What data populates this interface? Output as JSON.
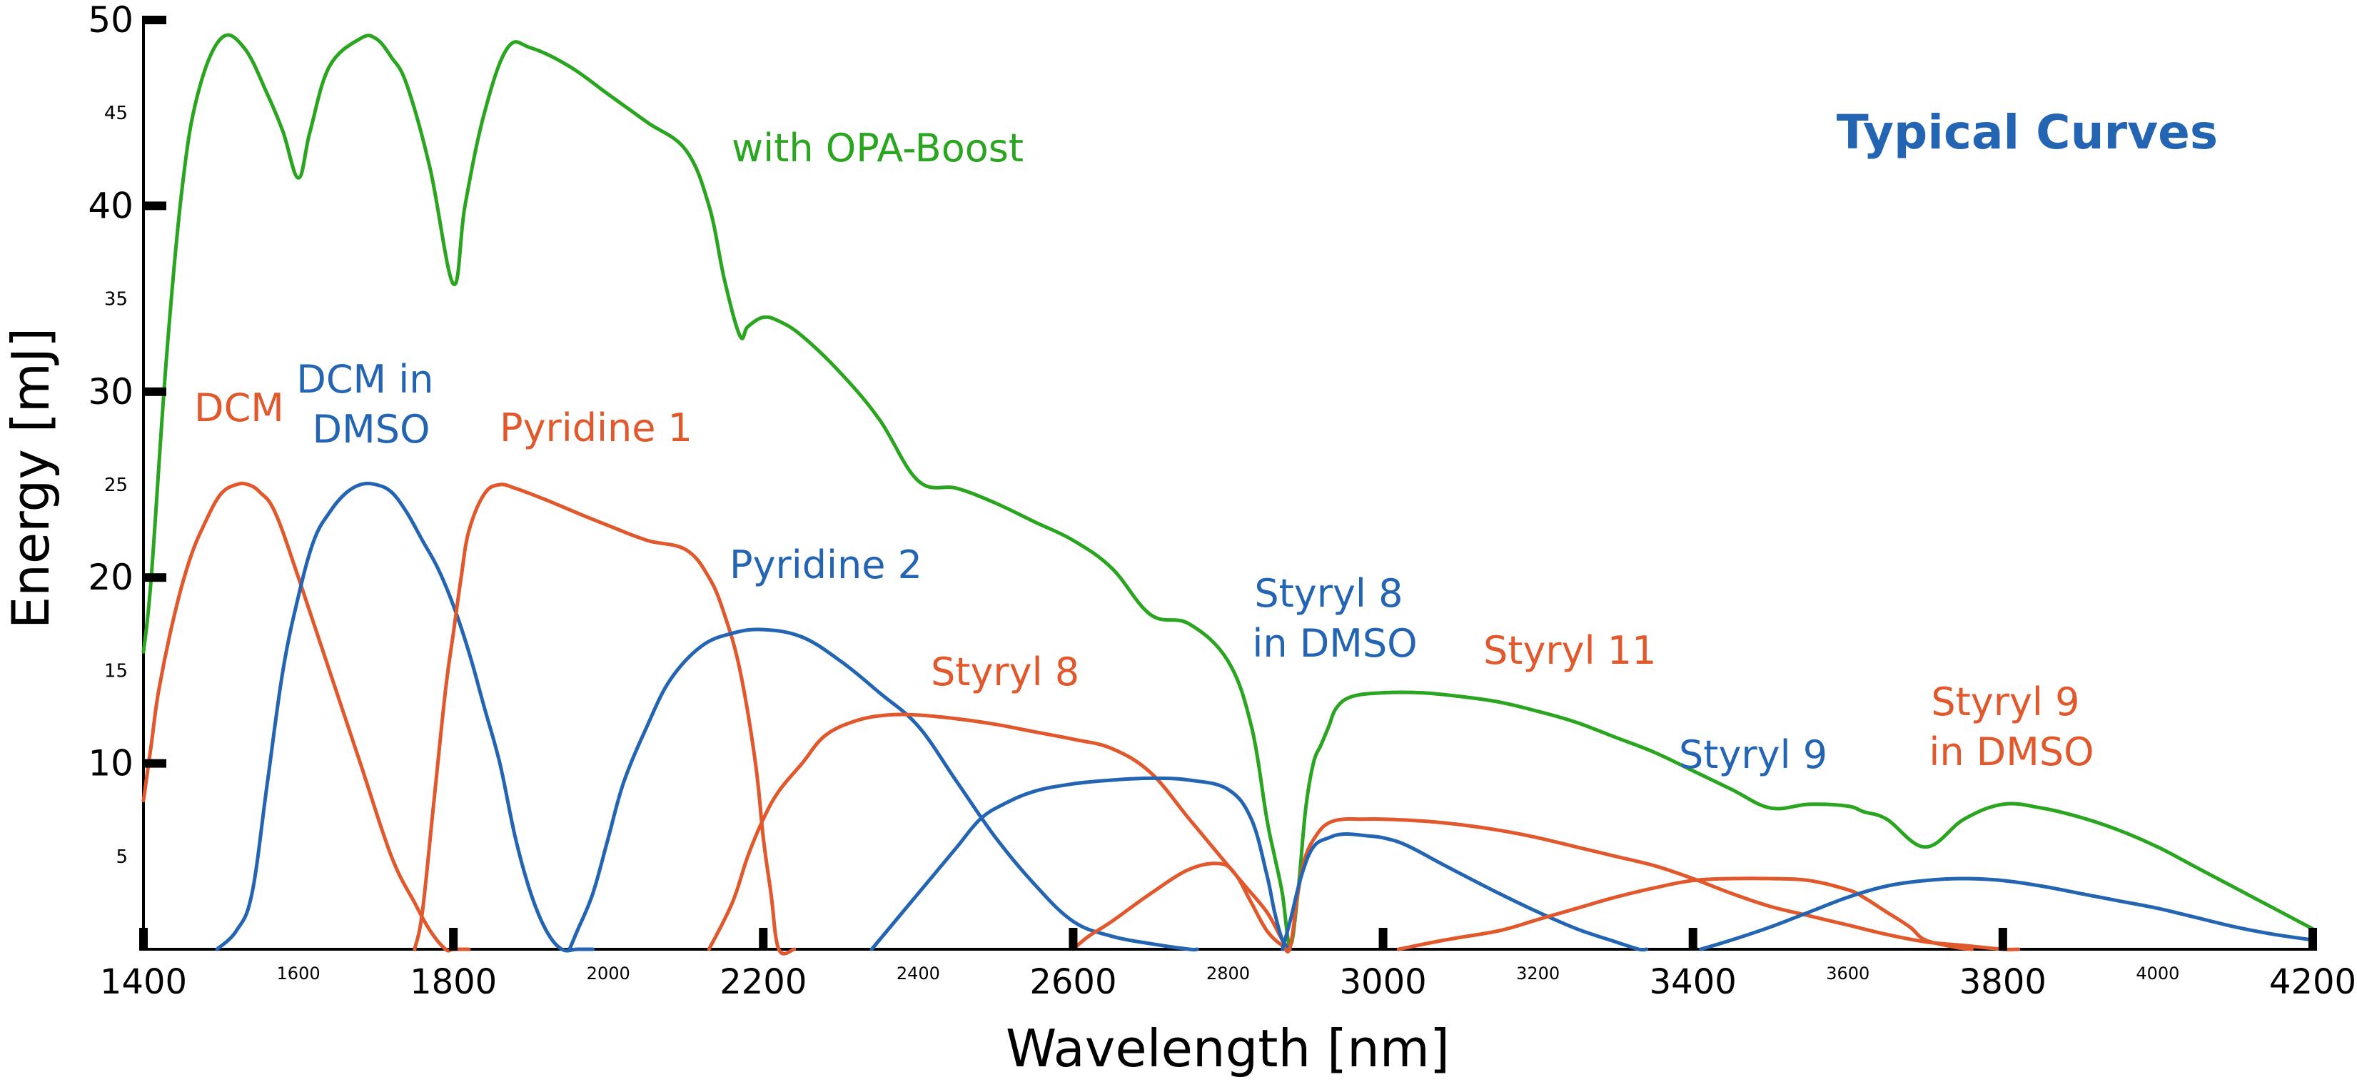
{
  "chart_data": {
    "type": "line",
    "title": "Typical Curves",
    "xlabel": "Wavelength [nm]",
    "ylabel": "Energy [mJ]",
    "xlim": [
      1400,
      4200
    ],
    "ylim": [
      0,
      50
    ],
    "x_ticks_major": [
      "1400",
      "1800",
      "2200",
      "2600",
      "3000",
      "3400",
      "3800",
      "4200"
    ],
    "x_ticks_minor": [
      "1600",
      "2000",
      "2400",
      "2800",
      "3200",
      "3600",
      "4000"
    ],
    "y_ticks_major": [
      "10",
      "20",
      "30",
      "40",
      "50"
    ],
    "y_ticks_minor": [
      "5",
      "15",
      "25",
      "35",
      "45"
    ],
    "grid": false,
    "colors": {
      "green": "#2aa520",
      "blue": "#2364b3",
      "orange": "#e0582b",
      "title": "#2364b3"
    },
    "series": [
      {
        "name": "with OPA-Boost",
        "color": "#2aa520",
        "x": [
          1400,
          1410,
          1430,
          1450,
          1470,
          1500,
          1530,
          1560,
          1580,
          1600,
          1615,
          1640,
          1680,
          1700,
          1720,
          1740,
          1770,
          1800,
          1815,
          1840,
          1870,
          1900,
          1950,
          2000,
          2050,
          2100,
          2130,
          2150,
          2170,
          2180,
          2200,
          2220,
          2250,
          2300,
          2350,
          2400,
          2450,
          2500,
          2550,
          2600,
          2650,
          2700,
          2750,
          2800,
          2830,
          2850,
          2860,
          2870,
          2880,
          2890,
          2900,
          2910,
          2920,
          2930,
          2940,
          2960,
          3000,
          3050,
          3100,
          3150,
          3200,
          3250,
          3300,
          3350,
          3400,
          3450,
          3500,
          3550,
          3600,
          3620,
          3650,
          3700,
          3750,
          3800,
          3850,
          3900,
          3950,
          4000,
          4050,
          4100,
          4150,
          4200
        ],
        "y": [
          16,
          20,
          32,
          41,
          46,
          49,
          48.5,
          46,
          44,
          41.5,
          44,
          47.5,
          49,
          49,
          48,
          46.5,
          42,
          35.8,
          40,
          45,
          48.5,
          48.5,
          47.5,
          46,
          44.5,
          43,
          40,
          36,
          33,
          33.5,
          34,
          33.8,
          33,
          31,
          28.5,
          25.2,
          24.8,
          24,
          23,
          22,
          20.5,
          18,
          17.5,
          15.5,
          12,
          7,
          5,
          3,
          0.2,
          3,
          7.5,
          10,
          11,
          12,
          13,
          13.6,
          13.8,
          13.8,
          13.6,
          13.3,
          12.8,
          12.2,
          11.4,
          10.6,
          9.6,
          8.6,
          7.6,
          7.8,
          7.7,
          7.4,
          7,
          5.5,
          7,
          7.8,
          7.6,
          7.1,
          6.4,
          5.5,
          4.4,
          3.3,
          2.2,
          1.1
        ]
      },
      {
        "name": "DCM",
        "color": "#e0582b",
        "x": [
          1400,
          1410,
          1420,
          1440,
          1460,
          1480,
          1500,
          1520,
          1535,
          1550,
          1570,
          1600,
          1640,
          1680,
          1720,
          1750,
          1770,
          1790,
          1800,
          1820
        ],
        "y": [
          8,
          11,
          14,
          18,
          21,
          23,
          24.5,
          25,
          25,
          24.6,
          23.5,
          20,
          15,
          10,
          5,
          2.5,
          1,
          0,
          0,
          0
        ]
      },
      {
        "name": "DCM in DMSO",
        "color": "#2364b3",
        "x": [
          1495,
          1520,
          1540,
          1560,
          1580,
          1600,
          1620,
          1640,
          1660,
          1680,
          1700,
          1720,
          1740,
          1760,
          1780,
          1800,
          1820,
          1840,
          1860,
          1880,
          1900,
          1920,
          1940,
          1960,
          1980
        ],
        "y": [
          0,
          1,
          3,
          9,
          15,
          19,
          22,
          23.5,
          24.5,
          25,
          25,
          24.6,
          23.5,
          22,
          20.5,
          18.5,
          16,
          13,
          10,
          6,
          3,
          1,
          0,
          0,
          0
        ]
      },
      {
        "name": "Pyridine 1",
        "color": "#e0582b",
        "x": [
          1750,
          1760,
          1775,
          1790,
          1800,
          1810,
          1820,
          1840,
          1860,
          1880,
          1900,
          1930,
          1970,
          2000,
          2050,
          2100,
          2130,
          2150,
          2170,
          2190,
          2200,
          2210,
          2220,
          2240
        ],
        "y": [
          0,
          2,
          8,
          14,
          17,
          20,
          22.5,
          24.5,
          25,
          24.8,
          24.5,
          24,
          23.3,
          22.8,
          22,
          21.5,
          20,
          18,
          15,
          10,
          6,
          3,
          0,
          0
        ]
      },
      {
        "name": "Pyridine 2",
        "color": "#2364b3",
        "x": [
          1950,
          1960,
          1980,
          2000,
          2020,
          2050,
          2080,
          2120,
          2160,
          2200,
          2250,
          2300,
          2350,
          2400,
          2450,
          2500,
          2550,
          2600,
          2650,
          2700,
          2750,
          2760
        ],
        "y": [
          0,
          1,
          3,
          6,
          9,
          12,
          14.5,
          16.3,
          17,
          17.2,
          16.8,
          15.5,
          13.8,
          12,
          9,
          6,
          3.5,
          1.5,
          0.7,
          0.3,
          0,
          0
        ]
      },
      {
        "name": "Styryl 8",
        "color": "#e0582b",
        "x": [
          2130,
          2160,
          2180,
          2200,
          2220,
          2250,
          2280,
          2320,
          2360,
          2400,
          2450,
          2500,
          2550,
          2600,
          2650,
          2700,
          2750,
          2790,
          2820,
          2850,
          2870,
          2880
        ],
        "y": [
          0,
          2.5,
          5,
          7,
          8.5,
          10,
          11.5,
          12.3,
          12.6,
          12.6,
          12.4,
          12.1,
          11.7,
          11.3,
          10.8,
          9.5,
          7,
          5,
          3.5,
          2,
          0.5,
          0
        ]
      },
      {
        "name": "Styryl 8 in DMSO",
        "color": "#2364b3",
        "x": [
          2340,
          2380,
          2420,
          2450,
          2480,
          2510,
          2550,
          2600,
          2650,
          2700,
          2750,
          2800,
          2830,
          2850,
          2860,
          2870,
          2880
        ],
        "y": [
          0,
          2,
          4,
          5.5,
          7,
          7.8,
          8.5,
          8.9,
          9.1,
          9.2,
          9.1,
          8.6,
          7,
          4,
          2,
          0.5,
          0
        ]
      },
      {
        "name": "Styryl 11",
        "color": "#e0582b",
        "x": [
          2600,
          2620,
          2650,
          2700,
          2750,
          2790,
          2810,
          2830,
          2850,
          2870,
          2880,
          2890,
          2900,
          2915,
          2930,
          2950,
          2970,
          3000,
          3050,
          3100,
          3150,
          3200,
          3250,
          3300,
          3350,
          3400,
          3450,
          3500,
          3550,
          3600,
          3650,
          3700,
          3750,
          3800,
          3820
        ],
        "y": [
          0,
          0.7,
          1.5,
          3,
          4.3,
          4.6,
          4,
          2.5,
          1,
          0.2,
          0.1,
          3,
          5,
          6.2,
          6.8,
          7,
          7,
          7,
          6.9,
          6.7,
          6.4,
          6,
          5.5,
          5,
          4.5,
          3.8,
          3,
          2.3,
          1.8,
          1.3,
          0.8,
          0.4,
          0.2,
          0,
          0
        ]
      },
      {
        "name": "Styryl 9",
        "color": "#2364b3",
        "x": [
          2870,
          2880,
          2895,
          2910,
          2930,
          2950,
          2980,
          3000,
          3030,
          3080,
          3150,
          3200,
          3250,
          3300,
          3330,
          3340
        ],
        "y": [
          0,
          1.5,
          4,
          5.5,
          6,
          6.2,
          6.1,
          6,
          5.6,
          4.5,
          3,
          2,
          1.1,
          0.4,
          0,
          0
        ]
      },
      {
        "name": "Styryl 9 in DMSO",
        "color": "#e0582b",
        "x": [
          3020,
          3080,
          3150,
          3200,
          3250,
          3300,
          3350,
          3400,
          3450,
          3500,
          3550,
          3600,
          3620,
          3650,
          3680,
          3700,
          3740,
          3760
        ],
        "y": [
          0,
          0.5,
          1,
          1.6,
          2.2,
          2.8,
          3.3,
          3.7,
          3.8,
          3.8,
          3.7,
          3.2,
          2.8,
          2,
          1.2,
          0.5,
          0.1,
          0
        ]
      },
      {
        "name": "",
        "color": "#2364b3",
        "x": [
          3410,
          3450,
          3500,
          3550,
          3600,
          3650,
          3700,
          3750,
          3800,
          3850,
          3900,
          3950,
          4000,
          4050,
          4100,
          4150,
          4200
        ],
        "y": [
          0,
          0.5,
          1.2,
          2,
          2.8,
          3.4,
          3.7,
          3.8,
          3.7,
          3.4,
          3,
          2.6,
          2.2,
          1.7,
          1.2,
          0.8,
          0.5
        ]
      }
    ]
  }
}
